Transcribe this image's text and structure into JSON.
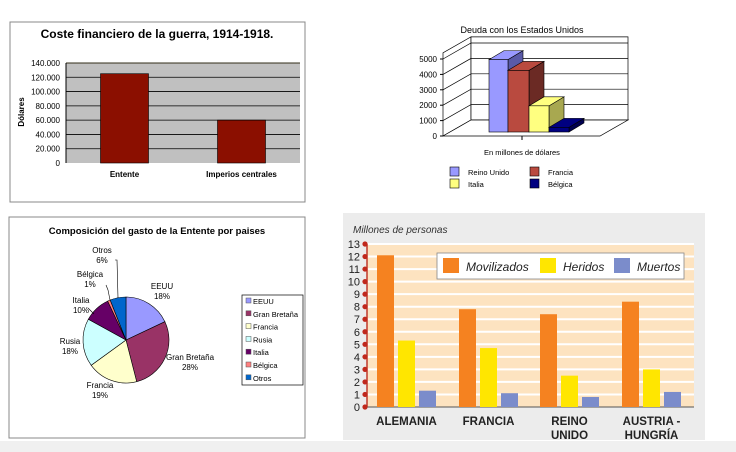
{
  "chart_data": [
    {
      "type": "bar",
      "title": "Coste financiero de la guerra, 1914-1918.",
      "ylabel": "Dólares",
      "xlabel": "",
      "categories": [
        "Entente",
        "Imperios centrales"
      ],
      "values": [
        125000,
        60000
      ],
      "ylim": [
        0,
        140000
      ],
      "yticks": [
        "0",
        "20.000",
        "40.000",
        "60.000",
        "80.000",
        "100.000",
        "120.000",
        "140.000"
      ],
      "grid": true,
      "color": "#8b0f00",
      "plot_bg": "#c0c0c0"
    },
    {
      "type": "bar",
      "title": "Deuda con los Estados Unidos",
      "xlabel": "En millones de dólares",
      "ylabel": "",
      "series": [
        {
          "name": "Reino Unido",
          "values": [
            4700
          ],
          "color": "#9999ff"
        },
        {
          "name": "Francia",
          "values": [
            4000
          ],
          "color": "#b94a3f"
        },
        {
          "name": "Italia",
          "values": [
            1700
          ],
          "color": "#ffff80"
        },
        {
          "name": "Bélgica",
          "values": [
            300
          ],
          "color": "#000080"
        }
      ],
      "ylim": [
        0,
        5000
      ],
      "yticks": [
        "0",
        "1000",
        "2000",
        "3000",
        "4000",
        "5000"
      ],
      "grid": true,
      "legend": "bottom",
      "style": "3d"
    },
    {
      "type": "pie",
      "title": "Composición del gasto de la Entente por paises",
      "slices": [
        {
          "label": "EEUU",
          "value": 18,
          "pct": "18%",
          "color": "#9999ff"
        },
        {
          "label": "Gran Bretaña",
          "value": 28,
          "pct": "28%",
          "color": "#993366"
        },
        {
          "label": "Francia",
          "value": 19,
          "pct": "19%",
          "color": "#ffffcc"
        },
        {
          "label": "Rusia",
          "value": 18,
          "pct": "18%",
          "color": "#ccffff"
        },
        {
          "label": "Italia",
          "value": 10,
          "pct": "10%",
          "color": "#660066"
        },
        {
          "label": "Bélgica",
          "value": 1,
          "pct": "1%",
          "color": "#ff8080"
        },
        {
          "label": "Otros",
          "value": 6,
          "pct": "6%",
          "color": "#0066cc"
        }
      ],
      "legend": "right"
    },
    {
      "type": "bar",
      "ylabel": "Millones de personas",
      "categories": [
        [
          "ALEMANIA"
        ],
        [
          "FRANCIA"
        ],
        [
          "REINO",
          "UNIDO"
        ],
        [
          "AUSTRIA -",
          "HUNGRÍA"
        ]
      ],
      "series": [
        {
          "name": "Movilizados",
          "values": [
            12.1,
            7.8,
            7.4,
            8.4
          ],
          "color": "#f58220"
        },
        {
          "name": "Heridos",
          "values": [
            5.3,
            4.7,
            2.5,
            3.0
          ],
          "color": "#ffe600"
        },
        {
          "name": "Muertos",
          "values": [
            1.3,
            1.1,
            0.8,
            1.2
          ],
          "color": "#7b8ccb"
        }
      ],
      "ylim": [
        0,
        13
      ],
      "yticks": [
        "0",
        "1",
        "2",
        "3",
        "4",
        "5",
        "6",
        "7",
        "8",
        "9",
        "10",
        "11",
        "12",
        "13"
      ],
      "legend": "top-right",
      "grid": true
    }
  ]
}
